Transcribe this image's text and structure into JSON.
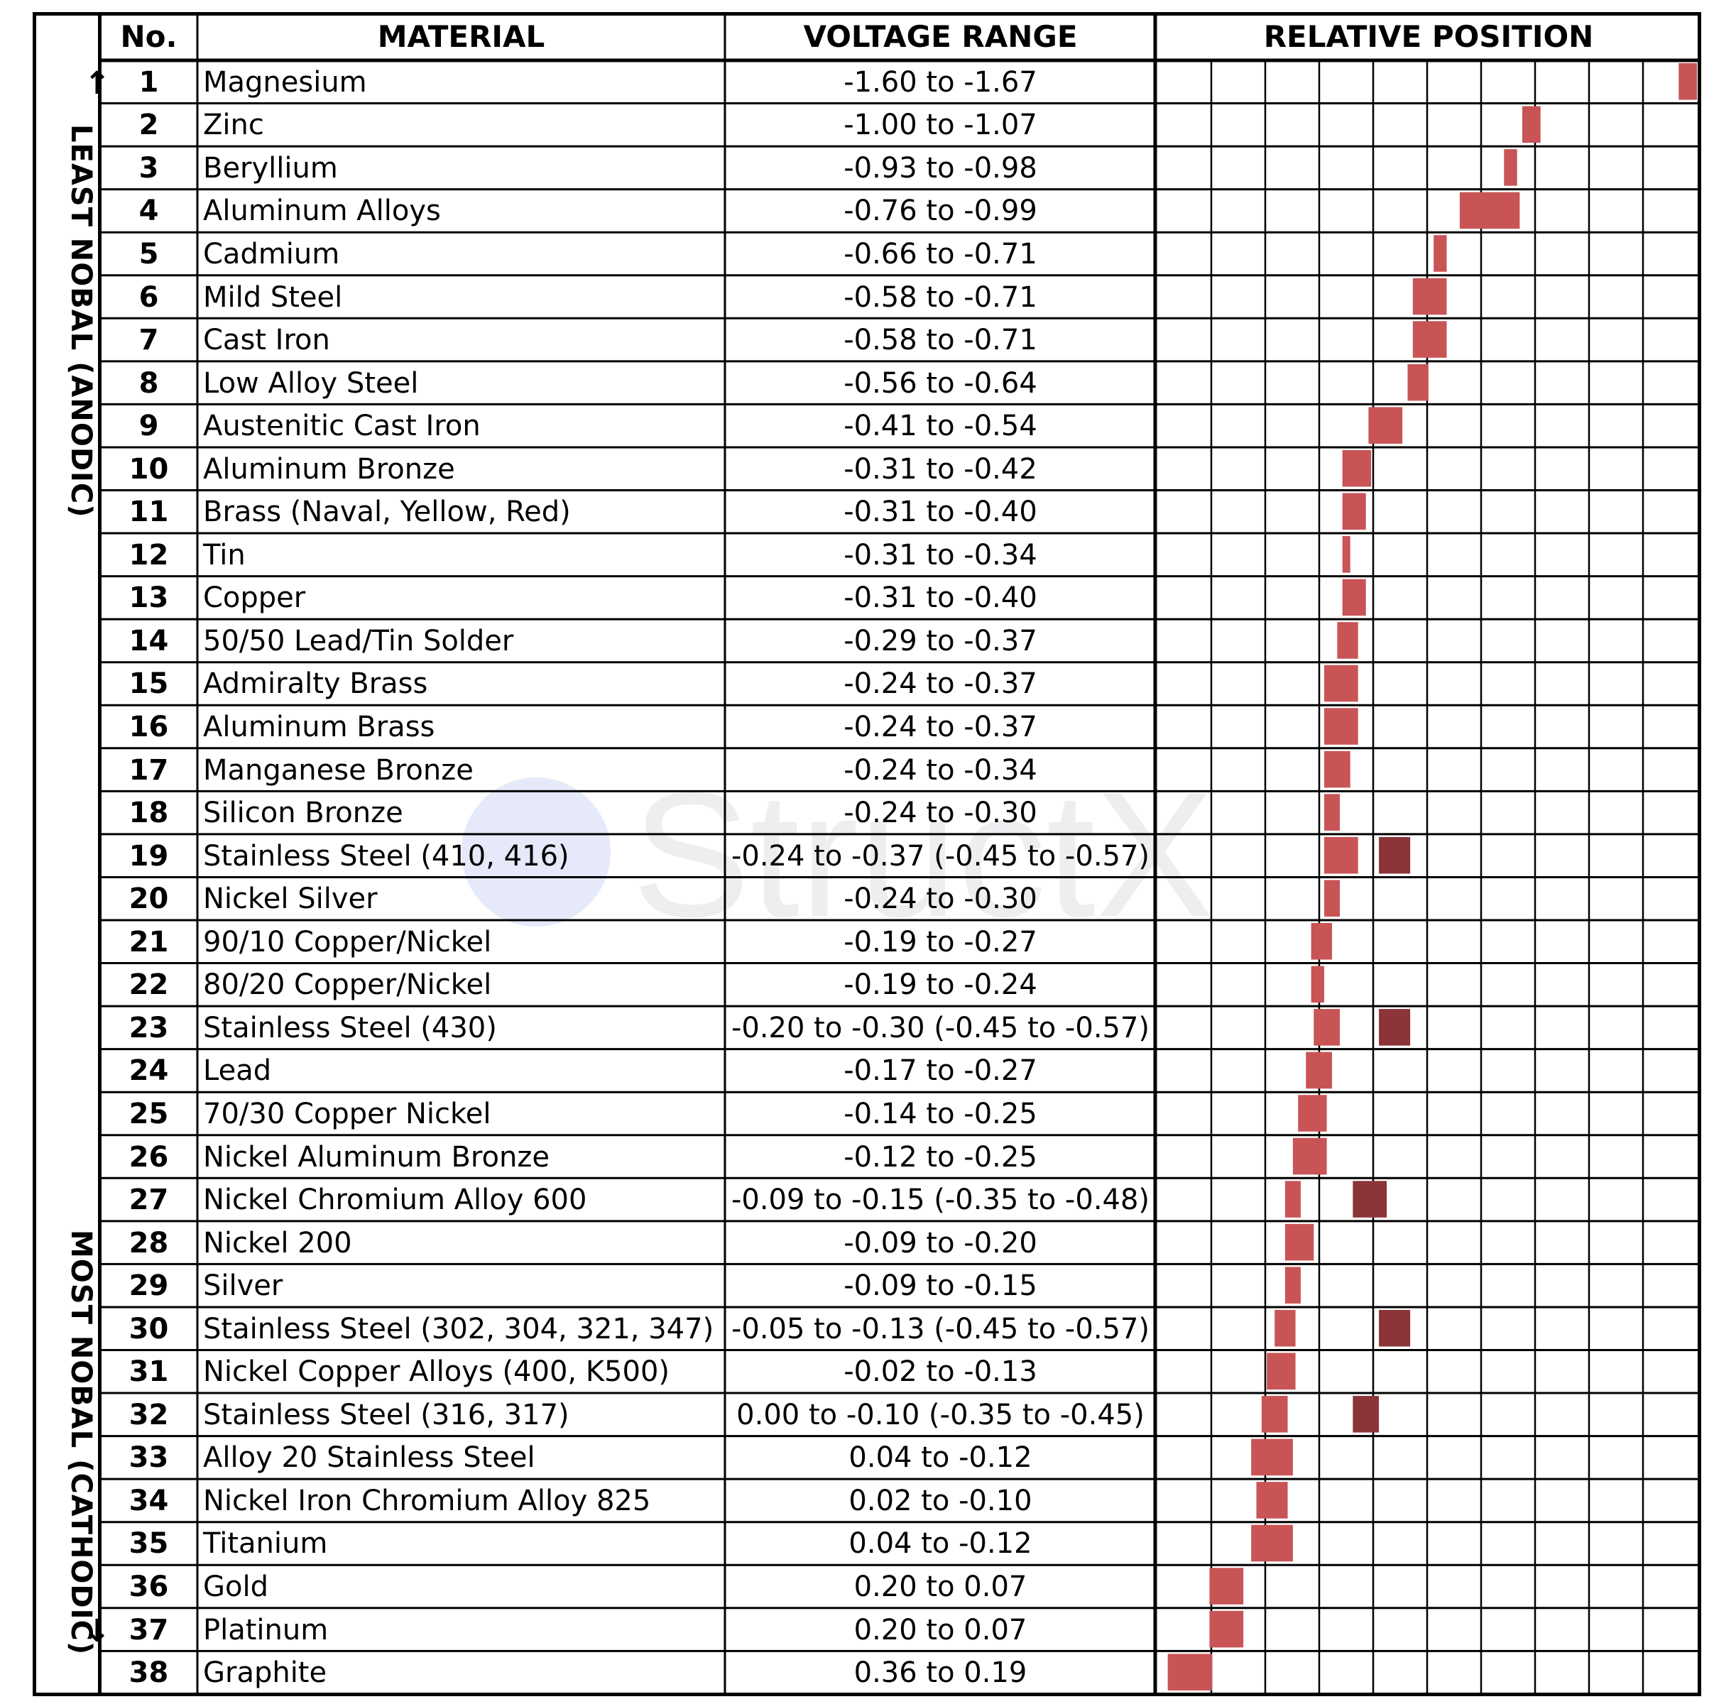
{
  "side_labels": {
    "top": "LEAST NOBAL (ANODIC)",
    "bottom": "MOST NOBAL (CATHODIC)",
    "top_arrow": "↑",
    "bottom_arrow": "↓"
  },
  "watermark": "StructX",
  "colors": {
    "primary_bar": "#c85456",
    "secondary_bar": "#8b3538",
    "grid": "#000000"
  },
  "chart_data": {
    "type": "table",
    "columns": [
      "No.",
      "MATERIAL",
      "VOLTAGE RANGE",
      "RELATIVE POSITION"
    ],
    "relative_position_scale": {
      "left_volts": 0.4,
      "right_volts": -1.67,
      "cells": 10
    },
    "rows": [
      {
        "no": "1",
        "material": "Magnesium",
        "range": "-1.60 to -1.67",
        "bar": [
          -1.6,
          -1.67
        ]
      },
      {
        "no": "2",
        "material": "Zinc",
        "range": "-1.00 to -1.07",
        "bar": [
          -1.0,
          -1.07
        ]
      },
      {
        "no": "3",
        "material": "Beryllium",
        "range": "-0.93 to -0.98",
        "bar": [
          -0.93,
          -0.98
        ]
      },
      {
        "no": "4",
        "material": "Aluminum Alloys",
        "range": "-0.76 to -0.99",
        "bar": [
          -0.76,
          -0.99
        ]
      },
      {
        "no": "5",
        "material": "Cadmium",
        "range": "-0.66 to -0.71",
        "bar": [
          -0.66,
          -0.71
        ]
      },
      {
        "no": "6",
        "material": "Mild Steel",
        "range": "-0.58 to -0.71",
        "bar": [
          -0.58,
          -0.71
        ]
      },
      {
        "no": "7",
        "material": "Cast Iron",
        "range": "-0.58 to -0.71",
        "bar": [
          -0.58,
          -0.71
        ]
      },
      {
        "no": "8",
        "material": "Low Alloy Steel",
        "range": "-0.56 to -0.64",
        "bar": [
          -0.56,
          -0.64
        ]
      },
      {
        "no": "9",
        "material": "Austenitic Cast Iron",
        "range": "-0.41 to -0.54",
        "bar": [
          -0.41,
          -0.54
        ]
      },
      {
        "no": "10",
        "material": "Aluminum Bronze",
        "range": "-0.31 to -0.42",
        "bar": [
          -0.31,
          -0.42
        ]
      },
      {
        "no": "11",
        "material": "Brass (Naval, Yellow, Red)",
        "range": "-0.31 to -0.40",
        "bar": [
          -0.31,
          -0.4
        ]
      },
      {
        "no": "12",
        "material": "Tin",
        "range": "-0.31 to -0.34",
        "bar": [
          -0.31,
          -0.34
        ]
      },
      {
        "no": "13",
        "material": "Copper",
        "range": "-0.31 to -0.40",
        "bar": [
          -0.31,
          -0.4
        ]
      },
      {
        "no": "14",
        "material": "50/50 Lead/Tin Solder",
        "range": "-0.29 to -0.37",
        "bar": [
          -0.29,
          -0.37
        ]
      },
      {
        "no": "15",
        "material": "Admiralty Brass",
        "range": "-0.24 to -0.37",
        "bar": [
          -0.24,
          -0.37
        ]
      },
      {
        "no": "16",
        "material": "Aluminum Brass",
        "range": "-0.24 to -0.37",
        "bar": [
          -0.24,
          -0.37
        ]
      },
      {
        "no": "17",
        "material": "Manganese Bronze",
        "range": "-0.24 to -0.34",
        "bar": [
          -0.24,
          -0.34
        ]
      },
      {
        "no": "18",
        "material": "Silicon Bronze",
        "range": "-0.24 to -0.30",
        "bar": [
          -0.24,
          -0.3
        ]
      },
      {
        "no": "19",
        "material": "Stainless Steel (410, 416)",
        "range": "-0.24 to -0.37  (-0.45 to -0.57)",
        "bar": [
          -0.24,
          -0.37
        ],
        "bar2": [
          -0.45,
          -0.57
        ]
      },
      {
        "no": "20",
        "material": "Nickel Silver",
        "range": "-0.24 to -0.30",
        "bar": [
          -0.24,
          -0.3
        ]
      },
      {
        "no": "21",
        "material": "90/10 Copper/Nickel",
        "range": "-0.19 to -0.27",
        "bar": [
          -0.19,
          -0.27
        ]
      },
      {
        "no": "22",
        "material": "80/20 Copper/Nickel",
        "range": "-0.19 to -0.24",
        "bar": [
          -0.19,
          -0.24
        ]
      },
      {
        "no": "23",
        "material": "Stainless Steel (430)",
        "range": "-0.20 to -0.30  (-0.45 to -0.57)",
        "bar": [
          -0.2,
          -0.3
        ],
        "bar2": [
          -0.45,
          -0.57
        ]
      },
      {
        "no": "24",
        "material": "Lead",
        "range": "-0.17 to -0.27",
        "bar": [
          -0.17,
          -0.27
        ]
      },
      {
        "no": "25",
        "material": "70/30 Copper Nickel",
        "range": "-0.14 to -0.25",
        "bar": [
          -0.14,
          -0.25
        ]
      },
      {
        "no": "26",
        "material": "Nickel Aluminum Bronze",
        "range": "-0.12 to -0.25",
        "bar": [
          -0.12,
          -0.25
        ]
      },
      {
        "no": "27",
        "material": "Nickel Chromium Alloy 600",
        "range": "-0.09 to -0.15  (-0.35 to -0.48)",
        "bar": [
          -0.09,
          -0.15
        ],
        "bar2": [
          -0.35,
          -0.48
        ]
      },
      {
        "no": "28",
        "material": "Nickel 200",
        "range": "-0.09 to -0.20",
        "bar": [
          -0.09,
          -0.2
        ]
      },
      {
        "no": "29",
        "material": "Silver",
        "range": "-0.09 to -0.15",
        "bar": [
          -0.09,
          -0.15
        ]
      },
      {
        "no": "30",
        "material": "Stainless Steel (302, 304, 321, 347)",
        "range": "-0.05 to -0.13  (-0.45 to -0.57)",
        "bar": [
          -0.05,
          -0.13
        ],
        "bar2": [
          -0.45,
          -0.57
        ]
      },
      {
        "no": "31",
        "material": "Nickel Copper Alloys (400, K500)",
        "range": "-0.02 to -0.13",
        "bar": [
          -0.02,
          -0.13
        ]
      },
      {
        "no": "32",
        "material": "Stainless Steel (316, 317)",
        "range": "0.00 to -0.10  (-0.35 to -0.45)",
        "bar": [
          0.0,
          -0.1
        ],
        "bar2": [
          -0.35,
          -0.45
        ]
      },
      {
        "no": "33",
        "material": "Alloy 20 Stainless Steel",
        "range": "0.04 to -0.12",
        "bar": [
          0.04,
          -0.12
        ]
      },
      {
        "no": "34",
        "material": "Nickel Iron Chromium Alloy 825",
        "range": "0.02 to -0.10",
        "bar": [
          0.02,
          -0.1
        ]
      },
      {
        "no": "35",
        "material": "Titanium",
        "range": "0.04 to -0.12",
        "bar": [
          0.04,
          -0.12
        ]
      },
      {
        "no": "36",
        "material": "Gold",
        "range": "0.20 to 0.07",
        "bar": [
          0.2,
          0.07
        ]
      },
      {
        "no": "37",
        "material": "Platinum",
        "range": "0.20 to 0.07",
        "bar": [
          0.2,
          0.07
        ]
      },
      {
        "no": "38",
        "material": "Graphite",
        "range": "0.36 to 0.19",
        "bar": [
          0.36,
          0.19
        ]
      }
    ]
  }
}
